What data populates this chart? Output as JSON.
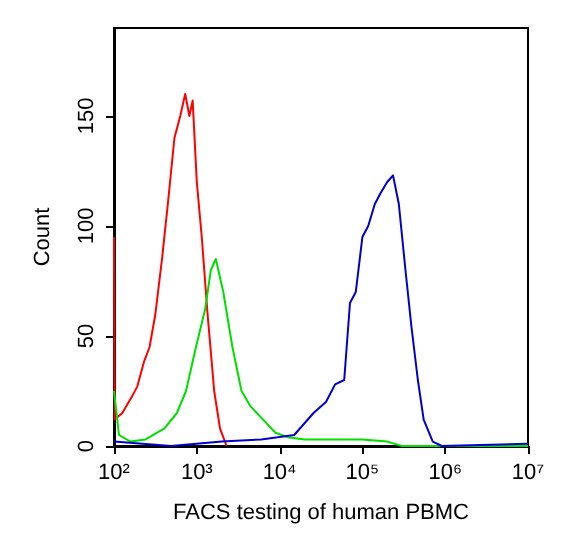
{
  "chart_data": {
    "type": "line",
    "xlabel": "FACS testing of human PBMC",
    "ylabel": "Count",
    "log": "x",
    "grid": false,
    "marker": "none",
    "line_style": "solid",
    "xlim": [
      100,
      10000000
    ],
    "xticks": [
      {
        "value": 100,
        "label": "10²"
      },
      {
        "value": 1000,
        "label": "10³"
      },
      {
        "value": 10000,
        "label": "10⁴"
      },
      {
        "value": 100000,
        "label": "10⁵"
      },
      {
        "value": 1000000,
        "label": "10⁶"
      },
      {
        "value": 10000000,
        "label": "10⁷"
      }
    ],
    "ylim": [
      0,
      190
    ],
    "yticks": [
      0,
      50,
      100,
      150
    ],
    "series": [
      {
        "color": "#ff0000",
        "x": [
          100,
          102,
          126,
          162,
          191,
          229,
          269,
          316,
          380,
          447,
          537,
          631,
          724,
          813,
          891,
          1000,
          1148,
          1349,
          1622,
          1905,
          2291
        ],
        "values": [
          95,
          12,
          15,
          22,
          27,
          38,
          45,
          60,
          85,
          110,
          140,
          150,
          160,
          150,
          157,
          120,
          95,
          60,
          25,
          8,
          0
        ]
      },
      {
        "color": "#00dd00",
        "x": [
          100,
          115,
          158,
          240,
          407,
          575,
          741,
          977,
          1259,
          1479,
          1698,
          2089,
          2692,
          3467,
          4467,
          6310,
          8913,
          12590,
          20000,
          50000,
          100000,
          200000,
          300000,
          10000000
        ],
        "values": [
          25,
          5,
          2,
          3,
          8,
          15,
          25,
          45,
          62,
          80,
          85,
          70,
          45,
          25,
          18,
          12,
          6,
          4,
          3,
          3,
          3,
          2,
          0,
          0
        ]
      },
      {
        "color": "#0000cc",
        "x": [
          100,
          490,
          2000,
          6000,
          15000,
          25700,
          36300,
          46800,
          60300,
          70800,
          83200,
          100000,
          117500,
          141300,
          166000,
          199500,
          234400,
          275400,
          331100,
          389000,
          467700,
          549500,
          707900,
          912000,
          10000000
        ],
        "values": [
          2,
          0,
          2,
          3,
          5,
          15,
          20,
          28,
          30,
          65,
          70,
          95,
          100,
          110,
          115,
          120,
          123,
          110,
          80,
          55,
          30,
          12,
          2,
          0,
          1
        ]
      }
    ]
  }
}
